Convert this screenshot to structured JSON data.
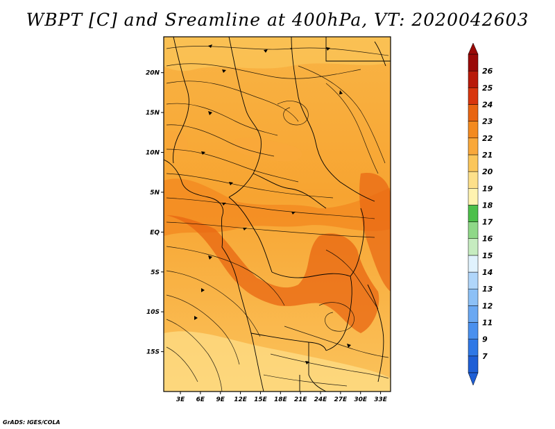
{
  "title": "WBPT [C] and Sreamline at 400hPa, VT: 2020042603",
  "credit": "GrADS: IGES/COLA",
  "map": {
    "lat_labels": [
      "20N",
      "15N",
      "10N",
      "5N",
      "EQ",
      "5S",
      "10S",
      "15S"
    ],
    "lon_labels": [
      "3E",
      "6E",
      "9E",
      "12E",
      "15E",
      "18E",
      "21E",
      "24E",
      "27E",
      "30E",
      "33E"
    ],
    "lat_values": [
      20,
      15,
      10,
      5,
      0,
      -5,
      -10,
      -15
    ],
    "lon_values": [
      3,
      6,
      9,
      12,
      15,
      18,
      21,
      24,
      27,
      30,
      33
    ],
    "extent": {
      "lon_min": 0.5,
      "lon_max": 34.5,
      "lat_min": -20,
      "lat_max": 24.5
    }
  },
  "colorbar": {
    "labels": [
      "7",
      "9",
      "11",
      "12",
      "13",
      "14",
      "15",
      "16",
      "17",
      "18",
      "19",
      "20",
      "21",
      "22",
      "23",
      "24",
      "25",
      "26"
    ],
    "colors": [
      "#1f5fd6",
      "#2f78e6",
      "#4a90ee",
      "#6aa8f2",
      "#8cc0f6",
      "#b0d6fa",
      "#e0f2fd",
      "#c6ecc0",
      "#8fd888",
      "#4cbf4a",
      "#fff3b0",
      "#fde08a",
      "#fbc65a",
      "#f9a83a",
      "#f38a20",
      "#e86512",
      "#d8360e",
      "#b81a0a",
      "#9a0a08"
    ]
  }
}
